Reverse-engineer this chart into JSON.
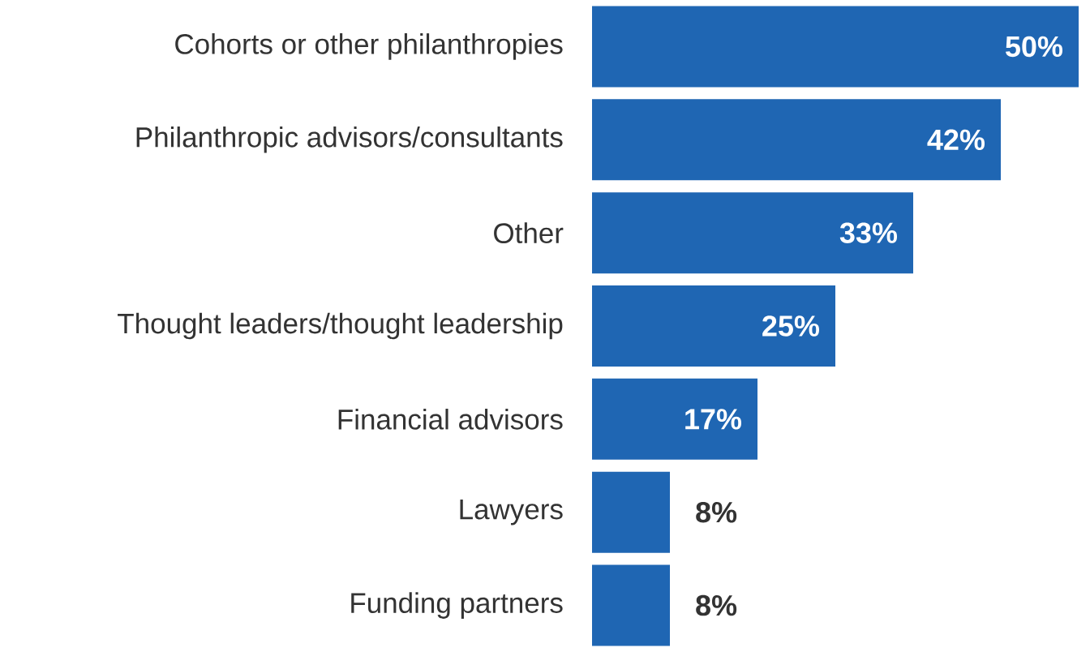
{
  "chart_data": {
    "type": "bar",
    "orientation": "horizontal",
    "categories": [
      "Cohorts or other philanthropies",
      "Philanthropic advisors/consultants",
      "Other",
      "Thought leaders/thought leadership",
      "Financial advisors",
      "Lawyers",
      "Funding partners"
    ],
    "values": [
      50,
      42,
      33,
      25,
      17,
      8,
      8
    ],
    "value_labels": [
      "50%",
      "42%",
      "33%",
      "25%",
      "17%",
      "8%",
      "8%"
    ],
    "color": "#1f66b3",
    "tick_labels": "y"
  }
}
